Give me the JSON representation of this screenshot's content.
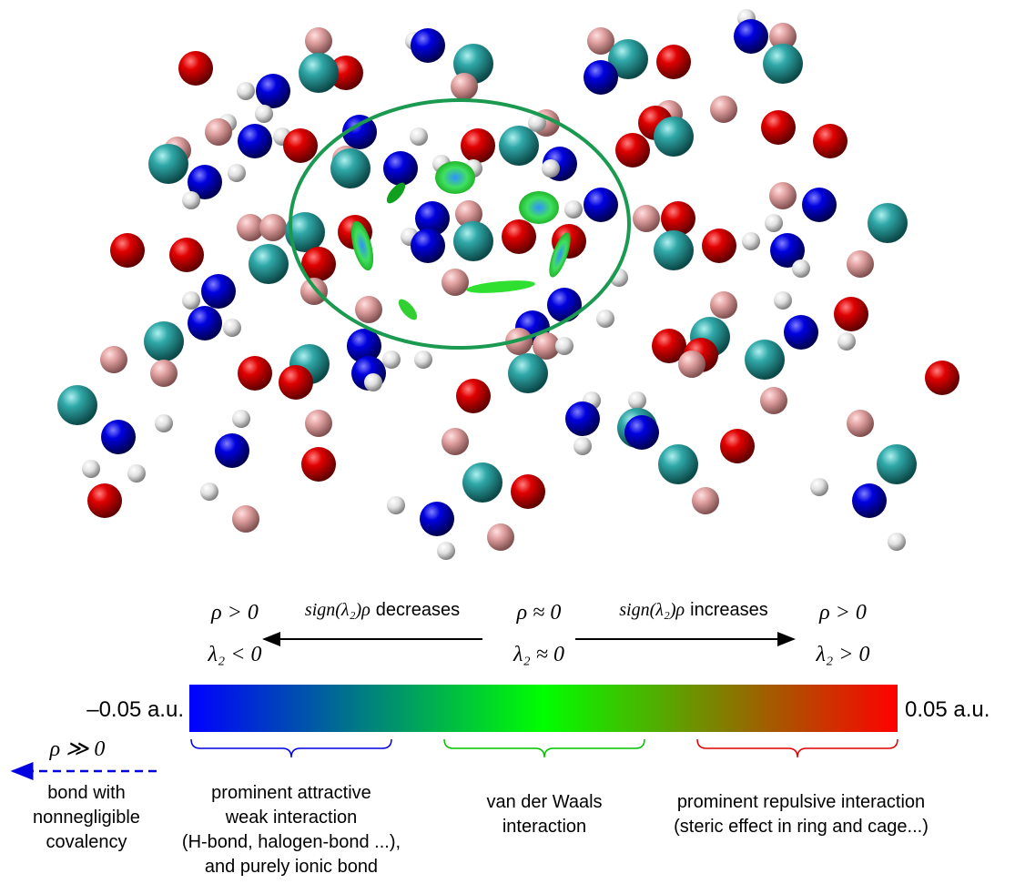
{
  "top_left": {
    "rho": "ρ > 0",
    "lambda": "λ₂ < 0"
  },
  "left_arrow": {
    "expr": "sign(λ₂)ρ",
    "word": "decreases"
  },
  "center": {
    "rho": "ρ ≈ 0",
    "lambda": "λ₂ ≈ 0"
  },
  "right_arrow": {
    "expr": "sign(λ₂)ρ",
    "word": "increases"
  },
  "top_right": {
    "rho": "ρ > 0",
    "lambda": "λ₂ > 0"
  },
  "colorbar": {
    "min_label": "–0.05 a.u.",
    "max_label": "0.05 a.u."
  },
  "covalent": {
    "rho": "ρ ≫ 0",
    "lines": [
      "bond with",
      "nonnegligible",
      "covalency"
    ]
  },
  "regions": [
    {
      "lines": [
        "prominent attractive",
        "weak interaction",
        "(H-bond, halogen-bond ...),",
        "and purely ionic bond"
      ]
    },
    {
      "lines": [
        "van der Waals",
        "interaction"
      ]
    },
    {
      "lines": [
        "prominent repulsive interaction",
        "(steric effect in ring and cage...)"
      ]
    }
  ]
}
